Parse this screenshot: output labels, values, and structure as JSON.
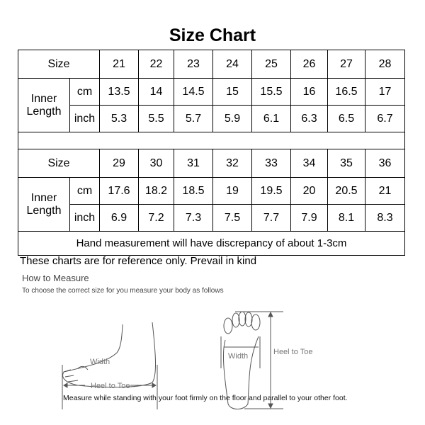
{
  "title": "Size Chart",
  "labels": {
    "size": "Size",
    "inner_length": "Inner Length",
    "cm": "cm",
    "inch": "inch"
  },
  "table1": {
    "sizes": [
      "21",
      "22",
      "23",
      "24",
      "25",
      "26",
      "27",
      "28"
    ],
    "cm": [
      "13.5",
      "14",
      "14.5",
      "15",
      "15.5",
      "16",
      "16.5",
      "17"
    ],
    "inch": [
      "5.3",
      "5.5",
      "5.7",
      "5.9",
      "6.1",
      "6.3",
      "6.5",
      "6.7"
    ]
  },
  "table2": {
    "sizes": [
      "29",
      "30",
      "31",
      "32",
      "33",
      "34",
      "35",
      "36"
    ],
    "cm": [
      "17.6",
      "18.2",
      "18.5",
      "19",
      "19.5",
      "20",
      "20.5",
      "21"
    ],
    "inch": [
      "6.9",
      "7.2",
      "7.3",
      "7.5",
      "7.7",
      "7.9",
      "8.1",
      "8.3"
    ]
  },
  "note": "Hand measurement will have discrepancy of about 1-3cm",
  "reference": "These charts are for reference only. Prevail in kind",
  "how_to": {
    "heading": "How to Measure",
    "subheading": "To choose the correct size for you measure your body as follows",
    "width_label": "Width",
    "heel_to_toe_label": "Heel to Toe",
    "instruction": "Measure while standing with your foot firmly on the floor and parallel to your other foot."
  }
}
